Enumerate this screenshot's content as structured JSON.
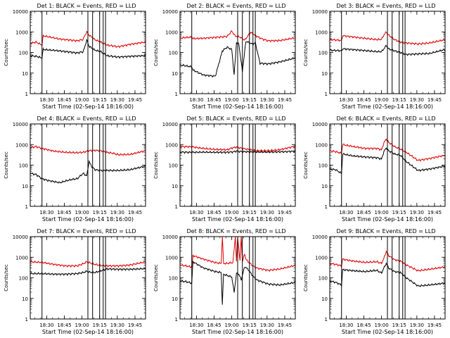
{
  "figure": {
    "background": "#ffffff",
    "axis_color": "#000000",
    "event_color": "#000000",
    "lld_color": "#e00000",
    "ylabel": "Counts/sec",
    "xlabel": "Start Time (02-Sep-14 18:16:00)",
    "x_ticks": [
      "18:30",
      "18:45",
      "19:00",
      "19:15",
      "19:30",
      "19:45"
    ],
    "y_ticks": [
      "1",
      "10",
      "100",
      "1000",
      "10000"
    ]
  },
  "chart_data": [
    {
      "type": "line",
      "title": "Det 1: BLACK = Events, RED = LLD",
      "xlabel": "Start Time (02-Sep-14 18:16:00)",
      "ylabel": "Counts/sec",
      "x_unit": "minutes since 18:16:00",
      "xlim": [
        0,
        98
      ],
      "ylim": [
        1,
        10000
      ],
      "log_y": true,
      "vlines": [
        10,
        49,
        53,
        59,
        62,
        64
      ],
      "series": [
        {
          "name": "LLD",
          "color": "#e00000",
          "x": [
            0,
            5,
            10,
            11,
            25,
            40,
            45,
            46,
            48,
            50,
            55,
            60,
            65,
            75,
            85,
            98
          ],
          "y": [
            270,
            320,
            230,
            650,
            450,
            370,
            430,
            600,
            1000,
            700,
            420,
            320,
            230,
            190,
            250,
            320
          ]
        },
        {
          "name": "Events",
          "color": "#000000",
          "x": [
            0,
            5,
            10,
            11,
            25,
            40,
            45,
            46,
            48,
            50,
            55,
            60,
            65,
            75,
            85,
            98
          ],
          "y": [
            70,
            65,
            55,
            140,
            120,
            95,
            110,
            160,
            400,
            200,
            130,
            110,
            70,
            60,
            65,
            70
          ]
        }
      ]
    },
    {
      "type": "line",
      "title": "Det 2: BLACK = Events, RED = LLD",
      "xlabel": "Start Time (02-Sep-14 18:16:00)",
      "ylabel": "Counts/sec",
      "x_unit": "minutes since 18:16:00",
      "xlim": [
        0,
        98
      ],
      "ylim": [
        1,
        10000
      ],
      "log_y": true,
      "vlines": [
        10,
        49,
        53,
        59,
        62,
        64
      ],
      "series": [
        {
          "name": "LLD",
          "color": "#e00000",
          "x": [
            0,
            10,
            11,
            20,
            30,
            40,
            44,
            47,
            50,
            55,
            60,
            65,
            70,
            75,
            85,
            98
          ],
          "y": [
            500,
            560,
            470,
            490,
            540,
            600,
            1100,
            620,
            600,
            400,
            950,
            620,
            450,
            370,
            380,
            520
          ]
        },
        {
          "name": "Events",
          "color": "#000000",
          "x": [
            0,
            10,
            11,
            20,
            30,
            36,
            40,
            44,
            46,
            48,
            50,
            53,
            56,
            60,
            62,
            64,
            68,
            75,
            85,
            98
          ],
          "y": [
            25,
            20,
            14,
            8,
            7,
            120,
            180,
            140,
            8,
            300,
            260,
            12,
            350,
            280,
            250,
            300,
            30,
            28,
            35,
            55
          ]
        }
      ]
    },
    {
      "type": "line",
      "title": "Det 3: BLACK = Events, RED = LLD",
      "xlabel": "Start Time (02-Sep-14 18:16:00)",
      "ylabel": "Counts/sec",
      "x_unit": "minutes since 18:16:00",
      "xlim": [
        0,
        98
      ],
      "ylim": [
        1,
        10000
      ],
      "log_y": true,
      "vlines": [
        10,
        49,
        53,
        59,
        62,
        64
      ],
      "series": [
        {
          "name": "LLD",
          "color": "#e00000",
          "x": [
            0,
            10,
            11,
            25,
            40,
            44,
            46,
            48,
            50,
            55,
            60,
            65,
            75,
            85,
            98
          ],
          "y": [
            430,
            380,
            650,
            520,
            420,
            440,
            700,
            1000,
            700,
            420,
            320,
            290,
            260,
            290,
            420
          ]
        },
        {
          "name": "Events",
          "color": "#000000",
          "x": [
            0,
            10,
            11,
            25,
            40,
            44,
            46,
            48,
            50,
            55,
            60,
            65,
            75,
            85,
            98
          ],
          "y": [
            130,
            120,
            150,
            130,
            110,
            110,
            150,
            220,
            150,
            120,
            100,
            80,
            85,
            90,
            140
          ]
        }
      ]
    },
    {
      "type": "line",
      "title": "Det 4: BLACK = Events, RED = LLD",
      "xlabel": "Start Time (02-Sep-14 18:16:00)",
      "ylabel": "Counts/sec",
      "x_unit": "minutes since 18:16:00",
      "xlim": [
        0,
        98
      ],
      "ylim": [
        1,
        10000
      ],
      "log_y": true,
      "vlines": [
        10,
        49,
        53,
        59,
        62,
        64
      ],
      "series": [
        {
          "name": "LLD",
          "color": "#e00000",
          "x": [
            0,
            5,
            10,
            20,
            30,
            40,
            45,
            50,
            55,
            60,
            65,
            70,
            75,
            85,
            98
          ],
          "y": [
            700,
            800,
            650,
            480,
            420,
            400,
            420,
            500,
            520,
            500,
            420,
            380,
            320,
            330,
            500
          ]
        },
        {
          "name": "Events",
          "color": "#000000",
          "x": [
            0,
            5,
            10,
            15,
            20,
            25,
            30,
            35,
            40,
            45,
            48,
            50,
            52,
            55,
            60,
            65,
            75,
            85,
            98
          ],
          "y": [
            40,
            35,
            22,
            18,
            16,
            14,
            17,
            20,
            22,
            40,
            30,
            150,
            90,
            60,
            55,
            55,
            55,
            60,
            90
          ]
        }
      ]
    },
    {
      "type": "line",
      "title": "Det 5: BLACK = Events, RED = LLD",
      "xlabel": "Start Time (02-Sep-14 18:16:00)",
      "ylabel": "Counts/sec",
      "x_unit": "minutes since 18:16:00",
      "xlim": [
        0,
        98
      ],
      "ylim": [
        1,
        10000
      ],
      "log_y": true,
      "vlines": [
        10,
        49,
        53,
        59,
        62,
        64
      ],
      "series": [
        {
          "name": "LLD",
          "color": "#e00000",
          "x": [
            0,
            10,
            20,
            30,
            40,
            45,
            48,
            50,
            55,
            60,
            65,
            75,
            85,
            98
          ],
          "y": [
            800,
            780,
            650,
            580,
            560,
            700,
            750,
            700,
            620,
            560,
            500,
            500,
            560,
            820
          ]
        },
        {
          "name": "Events",
          "color": "#000000",
          "x": [
            0,
            10,
            20,
            30,
            40,
            45,
            48,
            50,
            55,
            60,
            65,
            75,
            85,
            98
          ],
          "y": [
            430,
            420,
            430,
            420,
            420,
            440,
            480,
            460,
            450,
            440,
            430,
            430,
            440,
            470
          ]
        }
      ]
    },
    {
      "type": "line",
      "title": "Det 6: BLACK = Events, RED = LLD",
      "xlabel": "Start Time (02-Sep-14 18:16:00)",
      "ylabel": "Counts/sec",
      "x_unit": "minutes since 18:16:00",
      "xlim": [
        0,
        98
      ],
      "ylim": [
        1,
        10000
      ],
      "log_y": true,
      "vlines": [
        10,
        49,
        53,
        59,
        62,
        64
      ],
      "series": [
        {
          "name": "LLD",
          "color": "#e00000",
          "x": [
            0,
            5,
            10,
            11,
            20,
            30,
            40,
            44,
            46,
            48,
            50,
            55,
            60,
            65,
            75,
            85,
            98
          ],
          "y": [
            500,
            450,
            380,
            1000,
            800,
            650,
            650,
            560,
            1200,
            1900,
            1300,
            800,
            600,
            420,
            170,
            210,
            300
          ]
        },
        {
          "name": "Events",
          "color": "#000000",
          "x": [
            0,
            5,
            10,
            11,
            20,
            30,
            40,
            44,
            46,
            48,
            50,
            55,
            60,
            65,
            75,
            85,
            98
          ],
          "y": [
            65,
            60,
            40,
            350,
            280,
            250,
            230,
            200,
            450,
            700,
            500,
            350,
            300,
            150,
            55,
            65,
            90
          ]
        }
      ]
    },
    {
      "type": "line",
      "title": "Det 7: BLACK = Events, RED = LLD",
      "xlabel": "Start Time (02-Sep-14 18:16:00)",
      "ylabel": "Counts/sec",
      "x_unit": "minutes since 18:16:00",
      "xlim": [
        0,
        98
      ],
      "ylim": [
        1,
        10000
      ],
      "log_y": true,
      "vlines": [
        10,
        49,
        53,
        59,
        62,
        64
      ],
      "series": [
        {
          "name": "LLD",
          "color": "#e00000",
          "x": [
            0,
            10,
            20,
            30,
            40,
            45,
            48,
            50,
            55,
            60,
            65,
            75,
            85,
            98
          ],
          "y": [
            600,
            560,
            450,
            380,
            380,
            480,
            600,
            550,
            450,
            400,
            380,
            380,
            420,
            600
          ]
        },
        {
          "name": "Events",
          "color": "#000000",
          "x": [
            0,
            10,
            20,
            30,
            40,
            45,
            48,
            50,
            55,
            60,
            65,
            75,
            85,
            98
          ],
          "y": [
            160,
            160,
            150,
            150,
            160,
            180,
            210,
            190,
            180,
            220,
            270,
            260,
            260,
            280
          ]
        }
      ]
    },
    {
      "type": "line",
      "title": "Det 8: BLACK = Events, RED = LLD",
      "xlabel": "Start Time (02-Sep-14 18:16:00)",
      "ylabel": "Counts/sec",
      "x_unit": "minutes since 18:16:00",
      "xlim": [
        0,
        98
      ],
      "ylim": [
        1,
        10000
      ],
      "log_y": true,
      "vlines": [
        10,
        49,
        53,
        59,
        62,
        64
      ],
      "series": [
        {
          "name": "LLD",
          "color": "#e00000",
          "x": [
            0,
            5,
            10,
            11,
            20,
            30,
            35,
            36,
            37,
            40,
            45,
            47,
            48,
            49,
            51,
            52,
            53,
            55,
            56,
            58,
            62,
            65,
            75,
            85,
            98
          ],
          "y": [
            420,
            380,
            330,
            1200,
            800,
            550,
            500,
            10000,
            500,
            500,
            550,
            10000,
            600,
            10000,
            650,
            10000,
            600,
            1500,
            800,
            600,
            380,
            300,
            230,
            270,
            400
          ]
        },
        {
          "name": "Events",
          "color": "#000000",
          "x": [
            0,
            5,
            10,
            11,
            20,
            30,
            35,
            36,
            37,
            40,
            44,
            46,
            48,
            50,
            52,
            55,
            58,
            62,
            65,
            75,
            85,
            98
          ],
          "y": [
            70,
            65,
            55,
            600,
            300,
            200,
            180,
            5,
            150,
            130,
            110,
            20,
            160,
            150,
            80,
            350,
            250,
            120,
            80,
            50,
            45,
            60
          ]
        }
      ]
    },
    {
      "type": "line",
      "title": "Det 9: BLACK = Events, RED = LLD",
      "xlabel": "Start Time (02-Sep-14 18:16:00)",
      "ylabel": "Counts/sec",
      "x_unit": "minutes since 18:16:00",
      "xlim": [
        0,
        98
      ],
      "ylim": [
        1,
        10000
      ],
      "log_y": true,
      "vlines": [
        10,
        49,
        53,
        59,
        62,
        64
      ],
      "series": [
        {
          "name": "LLD",
          "color": "#e00000",
          "x": [
            0,
            5,
            10,
            11,
            20,
            30,
            40,
            44,
            46,
            48,
            50,
            55,
            60,
            65,
            75,
            85,
            98
          ],
          "y": [
            500,
            450,
            380,
            800,
            650,
            560,
            600,
            500,
            900,
            1900,
            1200,
            750,
            650,
            420,
            220,
            260,
            340
          ]
        },
        {
          "name": "Events",
          "color": "#000000",
          "x": [
            0,
            5,
            10,
            11,
            20,
            30,
            40,
            44,
            46,
            48,
            50,
            55,
            60,
            65,
            75,
            85,
            98
          ],
          "y": [
            70,
            60,
            45,
            250,
            220,
            200,
            230,
            170,
            300,
            500,
            300,
            200,
            180,
            100,
            40,
            45,
            55
          ]
        }
      ]
    }
  ]
}
